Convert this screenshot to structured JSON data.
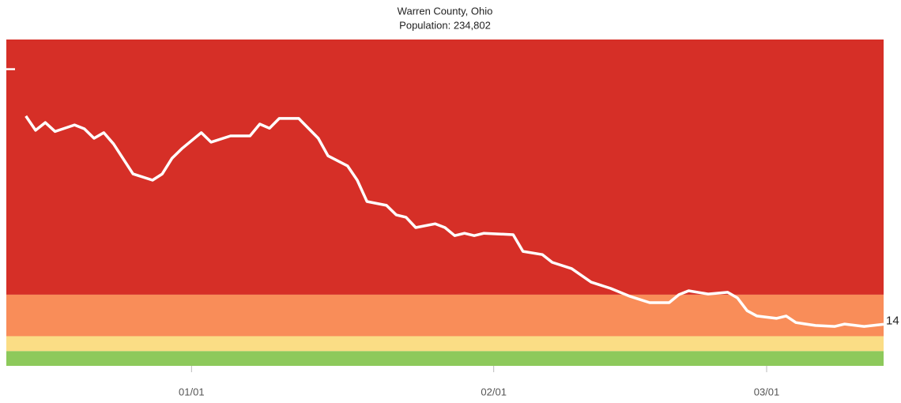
{
  "chart_data": {
    "type": "line",
    "title": "Warren County, Ohio",
    "subtitle": "Population: 234,802",
    "x": [
      "12/15",
      "12/16",
      "12/17",
      "12/18",
      "12/20",
      "12/21",
      "12/22",
      "12/23",
      "12/24",
      "12/26",
      "12/28",
      "12/29",
      "12/30",
      "12/31",
      "01/02",
      "01/03",
      "01/05",
      "01/07",
      "01/08",
      "01/09",
      "01/10",
      "01/12",
      "01/14",
      "01/15",
      "01/17",
      "01/18",
      "01/19",
      "01/21",
      "01/22",
      "01/23",
      "01/24",
      "01/26",
      "01/27",
      "01/28",
      "01/29",
      "01/30",
      "01/31",
      "02/03",
      "02/04",
      "02/06",
      "02/07",
      "02/09",
      "02/11",
      "02/13",
      "02/15",
      "02/17",
      "02/19",
      "02/20",
      "02/21",
      "02/23",
      "02/25",
      "02/26",
      "02/27",
      "02/28",
      "03/02",
      "03/03",
      "03/04",
      "03/06",
      "03/08",
      "03/09",
      "03/11",
      "03/13"
    ],
    "series": [
      {
        "color": "#ffffff",
        "values": [
          84.2,
          79.4,
          82,
          79,
          81.2,
          79.9,
          76.7,
          78.6,
          74.8,
          64.7,
          62.6,
          64.7,
          70,
          73.2,
          78.6,
          75.4,
          77.5,
          77.5,
          81.5,
          80.1,
          83.4,
          83.4,
          76.7,
          70.8,
          67.4,
          62.6,
          55.4,
          54.1,
          50.9,
          50.1,
          46.6,
          47.9,
          46.6,
          43.9,
          44.7,
          43.9,
          44.7,
          44.2,
          38.6,
          37.5,
          34.9,
          32.8,
          28.2,
          26.1,
          23.4,
          21.3,
          21.3,
          24,
          25.3,
          24.2,
          24.8,
          22.9,
          18.6,
          16.8,
          16,
          16.8,
          14.6,
          13.6,
          13.3,
          14.1,
          13.3,
          14
        ]
      }
    ],
    "end_label": true,
    "xlim": [
      "12/13",
      "03/13"
    ],
    "xticks": [
      "01/01",
      "02/01",
      "03/01"
    ],
    "ylim": [
      0,
      110
    ],
    "yticks": [
      100
    ],
    "bands": [
      {
        "from": 0,
        "to": 5,
        "color": "#8dc95b"
      },
      {
        "from": 5,
        "to": 10,
        "color": "#fbdd85"
      },
      {
        "from": 10,
        "to": 24,
        "color": "#f98d59"
      },
      {
        "from": 24,
        "to": 110,
        "color": "#d62f27"
      }
    ]
  }
}
